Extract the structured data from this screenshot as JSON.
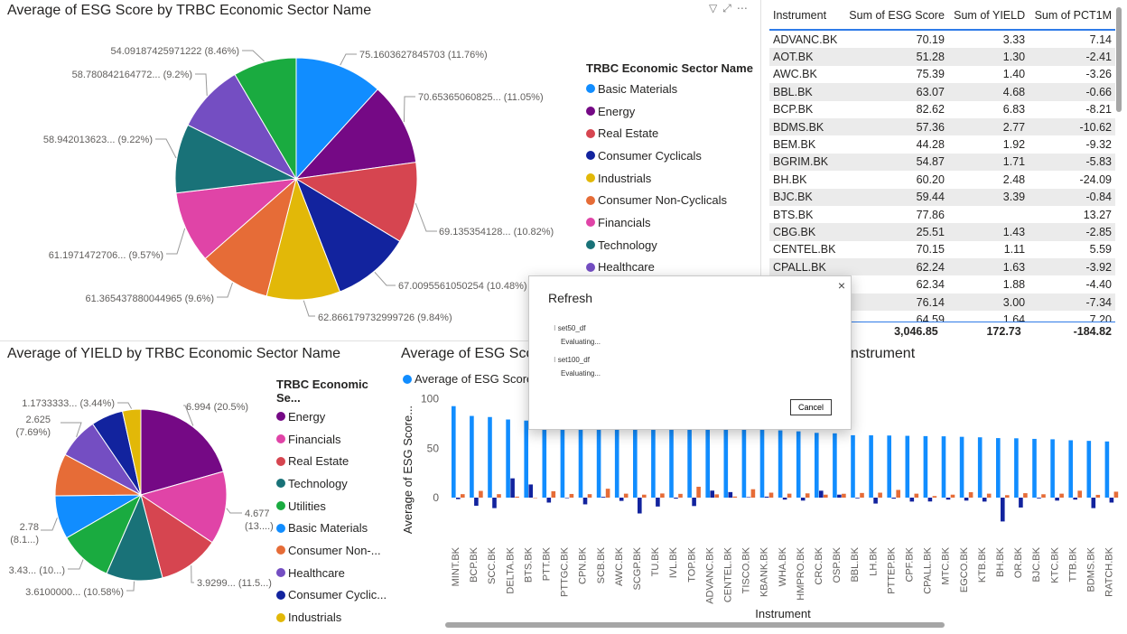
{
  "visuals": {
    "pie1": {
      "title": "Average of ESG Score by TRBC Economic Sector Name",
      "legend_title": "TRBC Economic Sector Name",
      "legend": [
        {
          "label": "Basic Materials",
          "color": "#118DFF"
        },
        {
          "label": "Energy",
          "color": "#750985"
        },
        {
          "label": "Real Estate",
          "color": "#D64550"
        },
        {
          "label": "Consumer Cyclicals",
          "color": "#12239E"
        },
        {
          "label": "Industrials",
          "color": "#E2B808"
        },
        {
          "label": "Consumer Non-Cyclicals",
          "color": "#E66C37"
        },
        {
          "label": "Financials",
          "color": "#E044A7"
        },
        {
          "label": "Technology",
          "color": "#197278"
        },
        {
          "label": "Healthcare",
          "color": "#744EC2"
        }
      ]
    },
    "table": {
      "headers": [
        "Instrument",
        "Sum of ESG Score",
        "Sum of YIELD",
        "Sum of PCT1M"
      ],
      "rows": [
        [
          "ADVANC.BK",
          "70.19",
          "3.33",
          "7.14"
        ],
        [
          "AOT.BK",
          "51.28",
          "1.30",
          "-2.41"
        ],
        [
          "AWC.BK",
          "75.39",
          "1.40",
          "-3.26"
        ],
        [
          "BBL.BK",
          "63.07",
          "4.68",
          "-0.66"
        ],
        [
          "BCP.BK",
          "82.62",
          "6.83",
          "-8.21"
        ],
        [
          "BDMS.BK",
          "57.36",
          "2.77",
          "-10.62"
        ],
        [
          "BEM.BK",
          "44.28",
          "1.92",
          "-9.32"
        ],
        [
          "BGRIM.BK",
          "54.87",
          "1.71",
          "-5.83"
        ],
        [
          "BH.BK",
          "60.20",
          "2.48",
          "-24.09"
        ],
        [
          "BJC.BK",
          "59.44",
          "3.39",
          "-0.84"
        ],
        [
          "BTS.BK",
          "77.86",
          "",
          "13.27"
        ],
        [
          "CBG.BK",
          "25.51",
          "1.43",
          "-2.85"
        ],
        [
          "CENTEL.BK",
          "70.15",
          "1.11",
          "5.59"
        ],
        [
          "CPALL.BK",
          "62.24",
          "1.63",
          "-3.92"
        ],
        [
          "",
          "62.34",
          "1.88",
          "-4.40"
        ],
        [
          "",
          "76.14",
          "3.00",
          "-7.34"
        ],
        [
          "",
          "64.59",
          "1.64",
          "7.20"
        ]
      ],
      "totals": [
        "",
        "3,046.85",
        "172.73",
        "-184.82"
      ]
    },
    "pie2": {
      "title": "Average of YIELD by TRBC Economic Sector Name",
      "legend_title": "TRBC Economic Se...",
      "legend": [
        {
          "label": "Energy",
          "color": "#750985"
        },
        {
          "label": "Financials",
          "color": "#E044A7"
        },
        {
          "label": "Real Estate",
          "color": "#D64550"
        },
        {
          "label": "Technology",
          "color": "#197278"
        },
        {
          "label": "Utilities",
          "color": "#1AAB40"
        },
        {
          "label": "Basic Materials",
          "color": "#118DFF"
        },
        {
          "label": "Consumer Non-...",
          "color": "#E66C37"
        },
        {
          "label": "Healthcare",
          "color": "#744EC2"
        },
        {
          "label": "Consumer Cyclic...",
          "color": "#12239E"
        },
        {
          "label": "Industrials",
          "color": "#E2B808"
        }
      ]
    },
    "bar": {
      "title_left": "Average of ESG Sco",
      "title_right": "nstrument",
      "legend_label": "Average of ESG Score",
      "xlabel": "Instrument",
      "ylabel": "Average of ESG Score..."
    }
  },
  "dialog": {
    "title": "Refresh",
    "close": "×",
    "items": [
      {
        "name": "set50_df",
        "status": "Evaluating..."
      },
      {
        "name": "set100_df",
        "status": "Evaluating..."
      }
    ],
    "cancel_label": "Cancel"
  },
  "chart_data": [
    {
      "type": "pie",
      "title": "Average of ESG Score by TRBC Economic Sector Name",
      "legend_title": "TRBC Economic Sector Name",
      "legend_position": "right",
      "slices": [
        {
          "name": "Basic Materials",
          "value": 75.1603627845703,
          "label": "75.1603627845703 (11.76%)",
          "color": "#118DFF"
        },
        {
          "name": "Energy",
          "value": 70.65365060825,
          "label": "70.65365060825... (11.05%)",
          "color": "#750985"
        },
        {
          "name": "Real Estate",
          "value": 69.135354128,
          "label": "69.135354128... (10.82%)",
          "color": "#D64550"
        },
        {
          "name": "Consumer Cyclicals",
          "value": 67.0095561050254,
          "label": "67.0095561050254 (10.48%)",
          "color": "#12239E"
        },
        {
          "name": "Industrials",
          "value": 62.866179732999726,
          "label": "62.866179732999726 (9.84%)",
          "color": "#E2B808"
        },
        {
          "name": "Consumer Non-Cyclicals",
          "value": 61.365437880044965,
          "label": "61.365437880044965 (9.6%)",
          "color": "#E66C37"
        },
        {
          "name": "Financials",
          "value": 61.1971472706,
          "label": "61.1971472706... (9.57%)",
          "color": "#E044A7"
        },
        {
          "name": "Technology",
          "value": 58.942013623,
          "label": "58.942013623... (9.22%)",
          "color": "#197278"
        },
        {
          "name": "Healthcare",
          "value": 58.780842164772,
          "label": "58.780842164772... (9.2%)",
          "color": "#744EC2"
        },
        {
          "name": "",
          "value": 54.09187425971222,
          "label": "54.09187425971222 (8.46%)",
          "color": "#1AAB40"
        }
      ]
    },
    {
      "type": "pie",
      "title": "Average of YIELD by TRBC Economic Sector Name",
      "legend_title": "TRBC Economic Se...",
      "legend_position": "right",
      "slices": [
        {
          "name": "Energy",
          "value": 6.994,
          "label": "6.994 (20.5%)",
          "color": "#750985"
        },
        {
          "name": "Financials",
          "value": 4.677,
          "label": "4.677|(13....)",
          "color": "#E044A7"
        },
        {
          "name": "Real Estate",
          "value": 3.9299,
          "label": "3.9299... (11.5...)",
          "color": "#D64550"
        },
        {
          "name": "Technology",
          "value": 3.61,
          "label": "3.6100000... (10.58%)",
          "color": "#197278"
        },
        {
          "name": "Utilities",
          "value": 3.43,
          "label": "3.43... (10...)",
          "color": "#1AAB40"
        },
        {
          "name": "Basic Materials",
          "value": 2.78,
          "label": "2.78|(8.1...)",
          "color": "#118DFF"
        },
        {
          "name": "Consumer Non-Cyclicals",
          "value": 2.7,
          "label": "",
          "color": "#E66C37"
        },
        {
          "name": "Healthcare",
          "value": 2.625,
          "label": "2.625|(7.69%)",
          "color": "#744EC2"
        },
        {
          "name": "Consumer Cyclicals",
          "value": 2.05,
          "label": "",
          "color": "#12239E"
        },
        {
          "name": "Industrials",
          "value": 1.1733333,
          "label": "1.1733333... (3.44%)",
          "color": "#E2B808"
        }
      ]
    },
    {
      "type": "bar",
      "title": "Average of ESG Sco... nstrument",
      "xlabel": "Instrument",
      "ylabel": "Average of ESG Score...",
      "ylim": [
        -30,
        100
      ],
      "yticks": [
        0,
        50,
        100
      ],
      "legend_position": "top-left",
      "categories": [
        "MINT.BK",
        "BCP.BK",
        "SCC.BK",
        "DELTA.BK",
        "BTS.BK",
        "PTT.BK",
        "PTTGC.BK",
        "CPN.BK",
        "SCB.BK",
        "AWC.BK",
        "SCGP.BK",
        "TU.BK",
        "IVL.BK",
        "TOP.BK",
        "ADVANC.BK",
        "CENTEL.BK",
        "TISCO.BK",
        "KBANK.BK",
        "WHA.BK",
        "HMPRO.BK",
        "CRC.BK",
        "OSP.BK",
        "BBL.BK",
        "LH.BK",
        "PTTEP.BK",
        "CPF.BK",
        "CPALL.BK",
        "MTC.BK",
        "EGCO.BK",
        "KTB.BK",
        "BH.BK",
        "OR.BK",
        "BJC.BK",
        "KTC.BK",
        "TTB.BK",
        "BDMS.BK",
        "RATCH.BK"
      ],
      "series": [
        {
          "name": "Average of ESG Score",
          "color": "#118DFF",
          "values": [
            92.5,
            82.6,
            81.5,
            79,
            77.9,
            77,
            76.5,
            76.2,
            76,
            75.4,
            75,
            74.5,
            74,
            73.5,
            70.2,
            70.2,
            69.5,
            68.8,
            68,
            67,
            65.5,
            65,
            63.1,
            63,
            62.8,
            62.5,
            62.2,
            62,
            61.5,
            61,
            60.2,
            60,
            59.4,
            59,
            58,
            57.4,
            56.8
          ]
        },
        {
          "name": "",
          "color": "#12239E",
          "values": [
            -1.5,
            -8.2,
            -10.6,
            19.5,
            13.3,
            -5,
            -0.5,
            -6.8,
            0.8,
            -3.3,
            -16,
            -9,
            -1,
            -8.5,
            7.1,
            5.6,
            0.5,
            1,
            -2,
            -3,
            7,
            3,
            -0.7,
            -6,
            -1,
            -4,
            -3.9,
            -2,
            -3,
            -4,
            -24.1,
            -10,
            -0.8,
            -3,
            -2,
            -10.6,
            -5
          ]
        },
        {
          "name": "",
          "color": "#E66C37",
          "values": [
            3.5,
            6.8,
            3.5,
            1,
            0,
            6.5,
            3.7,
            3.5,
            9,
            4,
            3,
            4.2,
            3.8,
            11,
            3.3,
            1.1,
            8.5,
            5,
            4,
            4.3,
            3,
            3.9,
            4.7,
            5,
            7.8,
            4,
            1.6,
            3,
            5.5,
            4,
            2.5,
            4.5,
            3.4,
            4,
            7,
            2.8,
            6
          ]
        }
      ]
    }
  ]
}
